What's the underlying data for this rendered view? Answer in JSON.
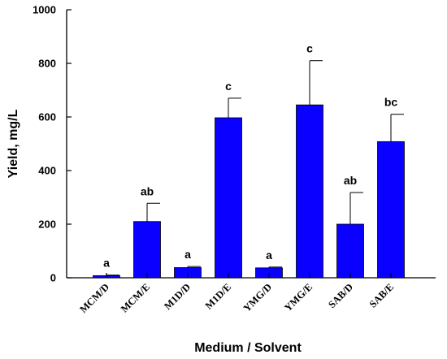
{
  "chart_data": {
    "type": "bar",
    "title": "",
    "xlabel": "Medium / Solvent",
    "ylabel": "Yield, mg/L",
    "ylim": [
      0,
      1000
    ],
    "yticks": [
      0,
      200,
      400,
      600,
      800,
      1000
    ],
    "categories": [
      "MCM/D",
      "MCM/E",
      "M1D/D",
      "M1D/E",
      "YMG/D",
      "YMG/E",
      "SAB/D",
      "SAB/E"
    ],
    "values": [
      8,
      210,
      38,
      597,
      37,
      645,
      200,
      508
    ],
    "errors": [
      2,
      68,
      4,
      73,
      3,
      165,
      118,
      102
    ],
    "significance": [
      "a",
      "ab",
      "a",
      "c",
      "a",
      "c",
      "ab",
      "bc"
    ],
    "grid": false,
    "bar_color": "#0a00ff"
  }
}
